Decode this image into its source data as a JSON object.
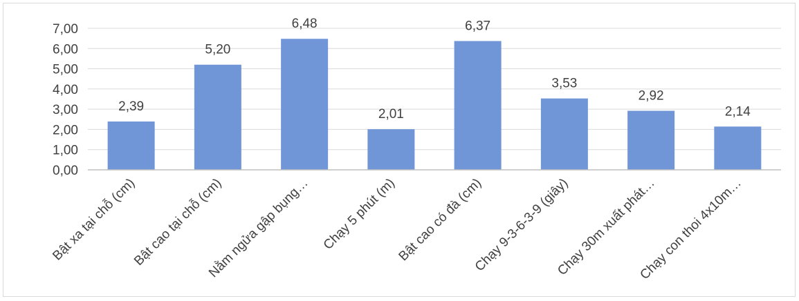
{
  "chart_data": {
    "type": "bar",
    "categories": [
      "Bật xa tại chỗ (cm)",
      "Bật cao tại chỗ (cm)",
      "Nằm ngửa gập bụng…",
      "Chạy 5 phút (m)",
      "Bật cao có đà (cm)",
      "Chạy 9-3-6-3-9 (giây)",
      "Chạy 30m xuất phát…",
      "Chạy con thoi 4x10m…"
    ],
    "values": [
      2.39,
      5.2,
      6.48,
      2.01,
      6.37,
      3.53,
      2.92,
      2.14
    ],
    "value_labels": [
      "2,39",
      "5,20",
      "6,48",
      "2,01",
      "6,37",
      "3,53",
      "2,92",
      "2,14"
    ],
    "y_ticks": [
      0,
      1,
      2,
      3,
      4,
      5,
      6,
      7
    ],
    "y_tick_labels": [
      "0,00",
      "1,00",
      "2,00",
      "3,00",
      "4,00",
      "5,00",
      "6,00",
      "7,00"
    ],
    "ylim": [
      0,
      7
    ],
    "title": "",
    "xlabel": "",
    "ylabel": "",
    "grid": true,
    "legend": "none",
    "colors": {
      "bar": "#7096d8",
      "grid": "#d9d9d9",
      "axis": "#bfbfbf",
      "text": "#404040"
    }
  }
}
